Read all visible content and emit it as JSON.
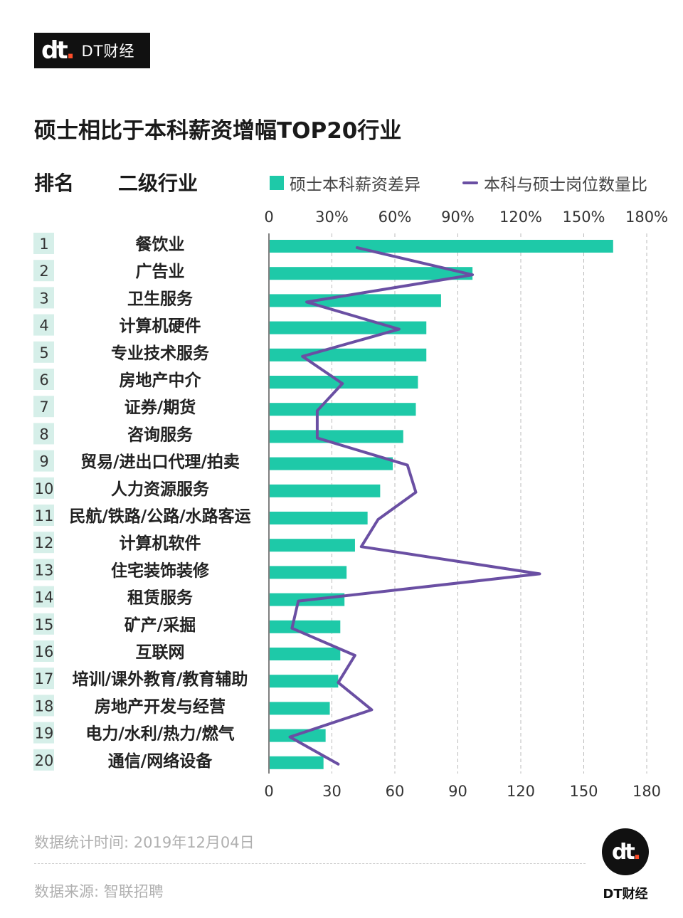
{
  "header": {
    "logo_mark": "dt",
    "logo_text": "DT财经",
    "title": "硕士相比于本科薪资增幅TOP20行业"
  },
  "columns": {
    "rank": "排名",
    "industry": "二级行业"
  },
  "colors": {
    "bar": "#1ec9a8",
    "line": "#6a4fa3",
    "rank_bg": "#d6efe9",
    "grid": "#bbbbbb",
    "axis": "#555555",
    "logo_accent": "#ff4e2a"
  },
  "chart_data": {
    "type": "bar",
    "orientation": "horizontal",
    "categories": [
      "餐饮业",
      "广告业",
      "卫生服务",
      "计算机硬件",
      "专业技术服务",
      "房地产中介",
      "证券/期货",
      "咨询服务",
      "贸易/进出口代理/拍卖",
      "人力资源服务",
      "民航/铁路/公路/水路客运",
      "计算机软件",
      "住宅装饰装修",
      "租赁服务",
      "矿产/采掘",
      "互联网",
      "培训/课外教育/教育辅助",
      "房地产开发与经营",
      "电力/水利/热力/燃气",
      "通信/网络设备"
    ],
    "ranks": [
      "1",
      "2",
      "3",
      "4",
      "5",
      "6",
      "7",
      "8",
      "9",
      "10",
      "11",
      "12",
      "13",
      "14",
      "15",
      "16",
      "17",
      "18",
      "19",
      "20"
    ],
    "series": [
      {
        "name": "硕士本科薪资差异",
        "kind": "bar",
        "values": [
          164,
          97,
          82,
          75,
          75,
          71,
          70,
          64,
          59,
          53,
          47,
          41,
          37,
          36,
          34,
          34,
          33,
          29,
          27,
          26
        ]
      },
      {
        "name": "本科与硕士岗位数量比",
        "kind": "line",
        "values": [
          42,
          97,
          18,
          62,
          16,
          35,
          23,
          23,
          66,
          70,
          52,
          44,
          129,
          14,
          11,
          41,
          33,
          49,
          10,
          33
        ]
      }
    ],
    "top_axis": {
      "ticks": [
        "0",
        "30%",
        "60%",
        "90%",
        "120%",
        "150%",
        "180%"
      ]
    },
    "bottom_axis": {
      "ticks": [
        "0",
        "30",
        "60",
        "90",
        "120",
        "150",
        "180"
      ]
    },
    "xlim": [
      0,
      180
    ],
    "grid": true,
    "legend_position": "top-right"
  },
  "footer": {
    "stat_time": "数据统计时间: 2019年12月04日",
    "source": "数据来源: 智联招聘",
    "brand_mark": "dt",
    "brand_name": "DT财经"
  }
}
